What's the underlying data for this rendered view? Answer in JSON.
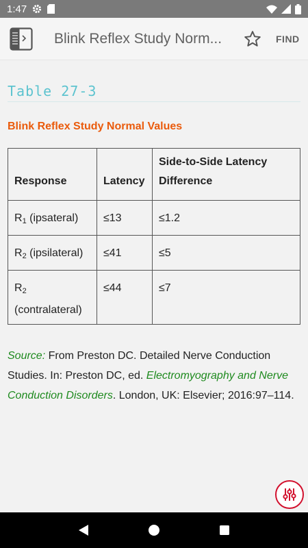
{
  "status_bar": {
    "time": "1:47"
  },
  "app_bar": {
    "title": "Blink Reflex Study Norm...",
    "find_label": "FIND"
  },
  "article": {
    "table_number": "Table 27-3",
    "table_title": "Blink Reflex Study Normal Values",
    "headers": [
      "Response",
      "Latency",
      "Side-to-Side Latency Difference"
    ],
    "rows": [
      {
        "r": "R",
        "sub": "1",
        "r_suffix": " (ipsateral)",
        "latency": "≤13",
        "diff": "≤1.2"
      },
      {
        "r": "R",
        "sub": "2",
        "r_suffix": " (ipsilateral)",
        "latency": "≤41",
        "diff": "≤5"
      },
      {
        "r": "R",
        "sub": "2",
        "r_suffix": " (contralateral)",
        "latency": "≤44",
        "diff": "≤7"
      }
    ],
    "source": {
      "label": "Source:",
      "text1": " From Preston DC. Detailed Nerve Conduction Studies. In: Preston DC, ed. ",
      "book": "Electromyography and Nerve Conduction Disorders",
      "text2": ". London, UK: Elsevier; 2016:97–114."
    }
  },
  "colors": {
    "accent_teal": "#5cc3cf",
    "title_orange": "#ea5b0c",
    "source_green": "#1e8a1e",
    "fab_red": "#d2112e"
  },
  "icons": [
    "gear-icon",
    "sd-card-icon",
    "wifi-icon",
    "signal-icon",
    "battery-icon",
    "book-icon",
    "star-icon",
    "settings-sliders-icon",
    "back-icon",
    "home-icon",
    "recents-icon"
  ]
}
